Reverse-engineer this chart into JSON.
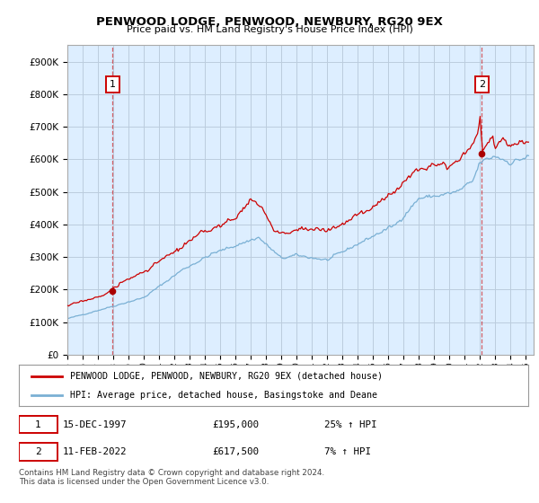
{
  "title": "PENWOOD LODGE, PENWOOD, NEWBURY, RG20 9EX",
  "subtitle": "Price paid vs. HM Land Registry's House Price Index (HPI)",
  "ylim": [
    0,
    950000
  ],
  "yticks": [
    0,
    100000,
    200000,
    300000,
    400000,
    500000,
    600000,
    700000,
    800000,
    900000
  ],
  "ytick_labels": [
    "£0",
    "£100K",
    "£200K",
    "£300K",
    "£400K",
    "£500K",
    "£600K",
    "£700K",
    "£800K",
    "£900K"
  ],
  "xlim_start": 1995.0,
  "xlim_end": 2025.5,
  "xticks": [
    1995,
    1996,
    1997,
    1998,
    1999,
    2000,
    2001,
    2002,
    2003,
    2004,
    2005,
    2006,
    2007,
    2008,
    2009,
    2010,
    2011,
    2012,
    2013,
    2014,
    2015,
    2016,
    2017,
    2018,
    2019,
    2020,
    2021,
    2022,
    2023,
    2024,
    2025
  ],
  "price_paid_color": "#cc0000",
  "hpi_color": "#7ab0d4",
  "marker_color": "#aa0000",
  "annotation_box_color": "#cc0000",
  "chart_bg_color": "#ddeeff",
  "background_color": "#ffffff",
  "grid_color": "#bbccdd",
  "legend_label_red": "PENWOOD LODGE, PENWOOD, NEWBURY, RG20 9EX (detached house)",
  "legend_label_blue": "HPI: Average price, detached house, Basingstoke and Deane",
  "transaction1_date": "15-DEC-1997",
  "transaction1_price": "£195,000",
  "transaction1_hpi": "25% ↑ HPI",
  "transaction2_date": "11-FEB-2022",
  "transaction2_price": "£617,500",
  "transaction2_hpi": "7% ↑ HPI",
  "footnote": "Contains HM Land Registry data © Crown copyright and database right 2024.\nThis data is licensed under the Open Government Licence v3.0.",
  "transaction1_year": 1997.96,
  "transaction1_value": 195000,
  "transaction2_year": 2022.11,
  "transaction2_value": 617500
}
